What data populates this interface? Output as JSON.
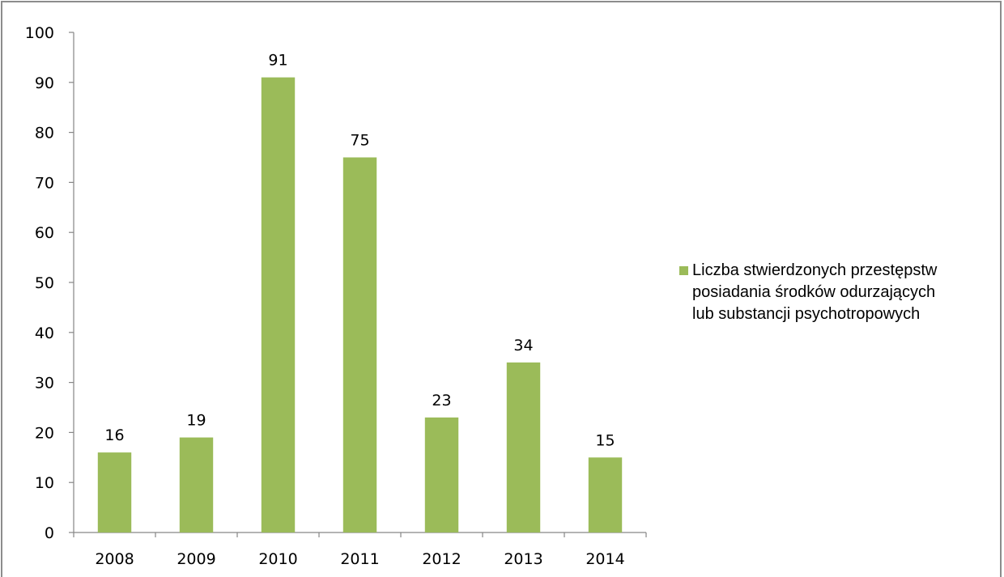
{
  "chart_data": {
    "type": "bar",
    "categories": [
      "2008",
      "2009",
      "2010",
      "2011",
      "2012",
      "2013",
      "2014"
    ],
    "series": [
      {
        "name": "Liczba stwierdzonych przestępstw posiadania środków odurzających lub substancji psychotropowych",
        "values": [
          16,
          19,
          91,
          75,
          23,
          34,
          15
        ]
      }
    ],
    "title": "",
    "xlabel": "",
    "ylabel": "",
    "ylim": [
      0,
      100
    ],
    "yticks": [
      0,
      10,
      20,
      30,
      40,
      50,
      60,
      70,
      80,
      90,
      100
    ],
    "grid": false,
    "legend_position": "right",
    "bar_color": "#9BBB59",
    "axis_color": "#868686"
  },
  "legend": {
    "lines": [
      "Liczba stwierdzonych przestępstw",
      "posiadania środków odurzających",
      "lub substancji psychotropowych"
    ]
  }
}
